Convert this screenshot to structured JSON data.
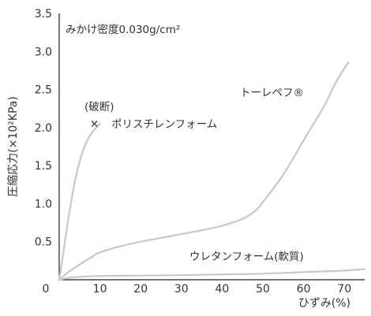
{
  "chart_data": {
    "type": "line",
    "subtitle": "みかけ密度0.030g/cm²",
    "xlabel": "ひずみ(%)",
    "ylabel": "圧縮応力(×10²KPa)",
    "xlim": [
      0,
      75
    ],
    "ylim": [
      0,
      3.5
    ],
    "x_ticks": [
      "0",
      "10",
      "20",
      "30",
      "40",
      "50",
      "60",
      "70"
    ],
    "y_ticks": [
      "0.5",
      "1.0",
      "1.5",
      "2.0",
      "2.5",
      "3.0",
      "3.5"
    ],
    "grid": false,
    "series": [
      {
        "name": "ポリスチレンフォーム",
        "color": "#c8c8c8",
        "points": [
          [
            0,
            0
          ],
          [
            1,
            0.35
          ],
          [
            2,
            0.72
          ],
          [
            3,
            1.05
          ],
          [
            4,
            1.33
          ],
          [
            5,
            1.55
          ],
          [
            6,
            1.72
          ],
          [
            7,
            1.84
          ],
          [
            8,
            1.93
          ],
          [
            9,
            1.99
          ],
          [
            10,
            2.05
          ]
        ]
      },
      {
        "name": "トーレペフ®",
        "color": "#c8c8c8",
        "points": [
          [
            0,
            0
          ],
          [
            2,
            0.09
          ],
          [
            5,
            0.2
          ],
          [
            8,
            0.3
          ],
          [
            10,
            0.36
          ],
          [
            15,
            0.44
          ],
          [
            20,
            0.5
          ],
          [
            25,
            0.55
          ],
          [
            30,
            0.6
          ],
          [
            35,
            0.65
          ],
          [
            40,
            0.71
          ],
          [
            45,
            0.8
          ],
          [
            48,
            0.9
          ],
          [
            50,
            1.02
          ],
          [
            55,
            1.38
          ],
          [
            60,
            1.83
          ],
          [
            65,
            2.28
          ],
          [
            68,
            2.6
          ],
          [
            71,
            2.86
          ]
        ]
      },
      {
        "name": "ウレタンフォーム(軟質)",
        "color": "#c8c8c8",
        "points": [
          [
            0,
            0
          ],
          [
            3,
            0.03
          ],
          [
            10,
            0.05
          ],
          [
            20,
            0.055
          ],
          [
            30,
            0.06
          ],
          [
            40,
            0.07
          ],
          [
            50,
            0.08
          ],
          [
            60,
            0.1
          ],
          [
            70,
            0.12
          ],
          [
            75,
            0.14
          ]
        ]
      }
    ],
    "annotations": {
      "break_label": "(破断)",
      "break_marker": "✕"
    }
  }
}
